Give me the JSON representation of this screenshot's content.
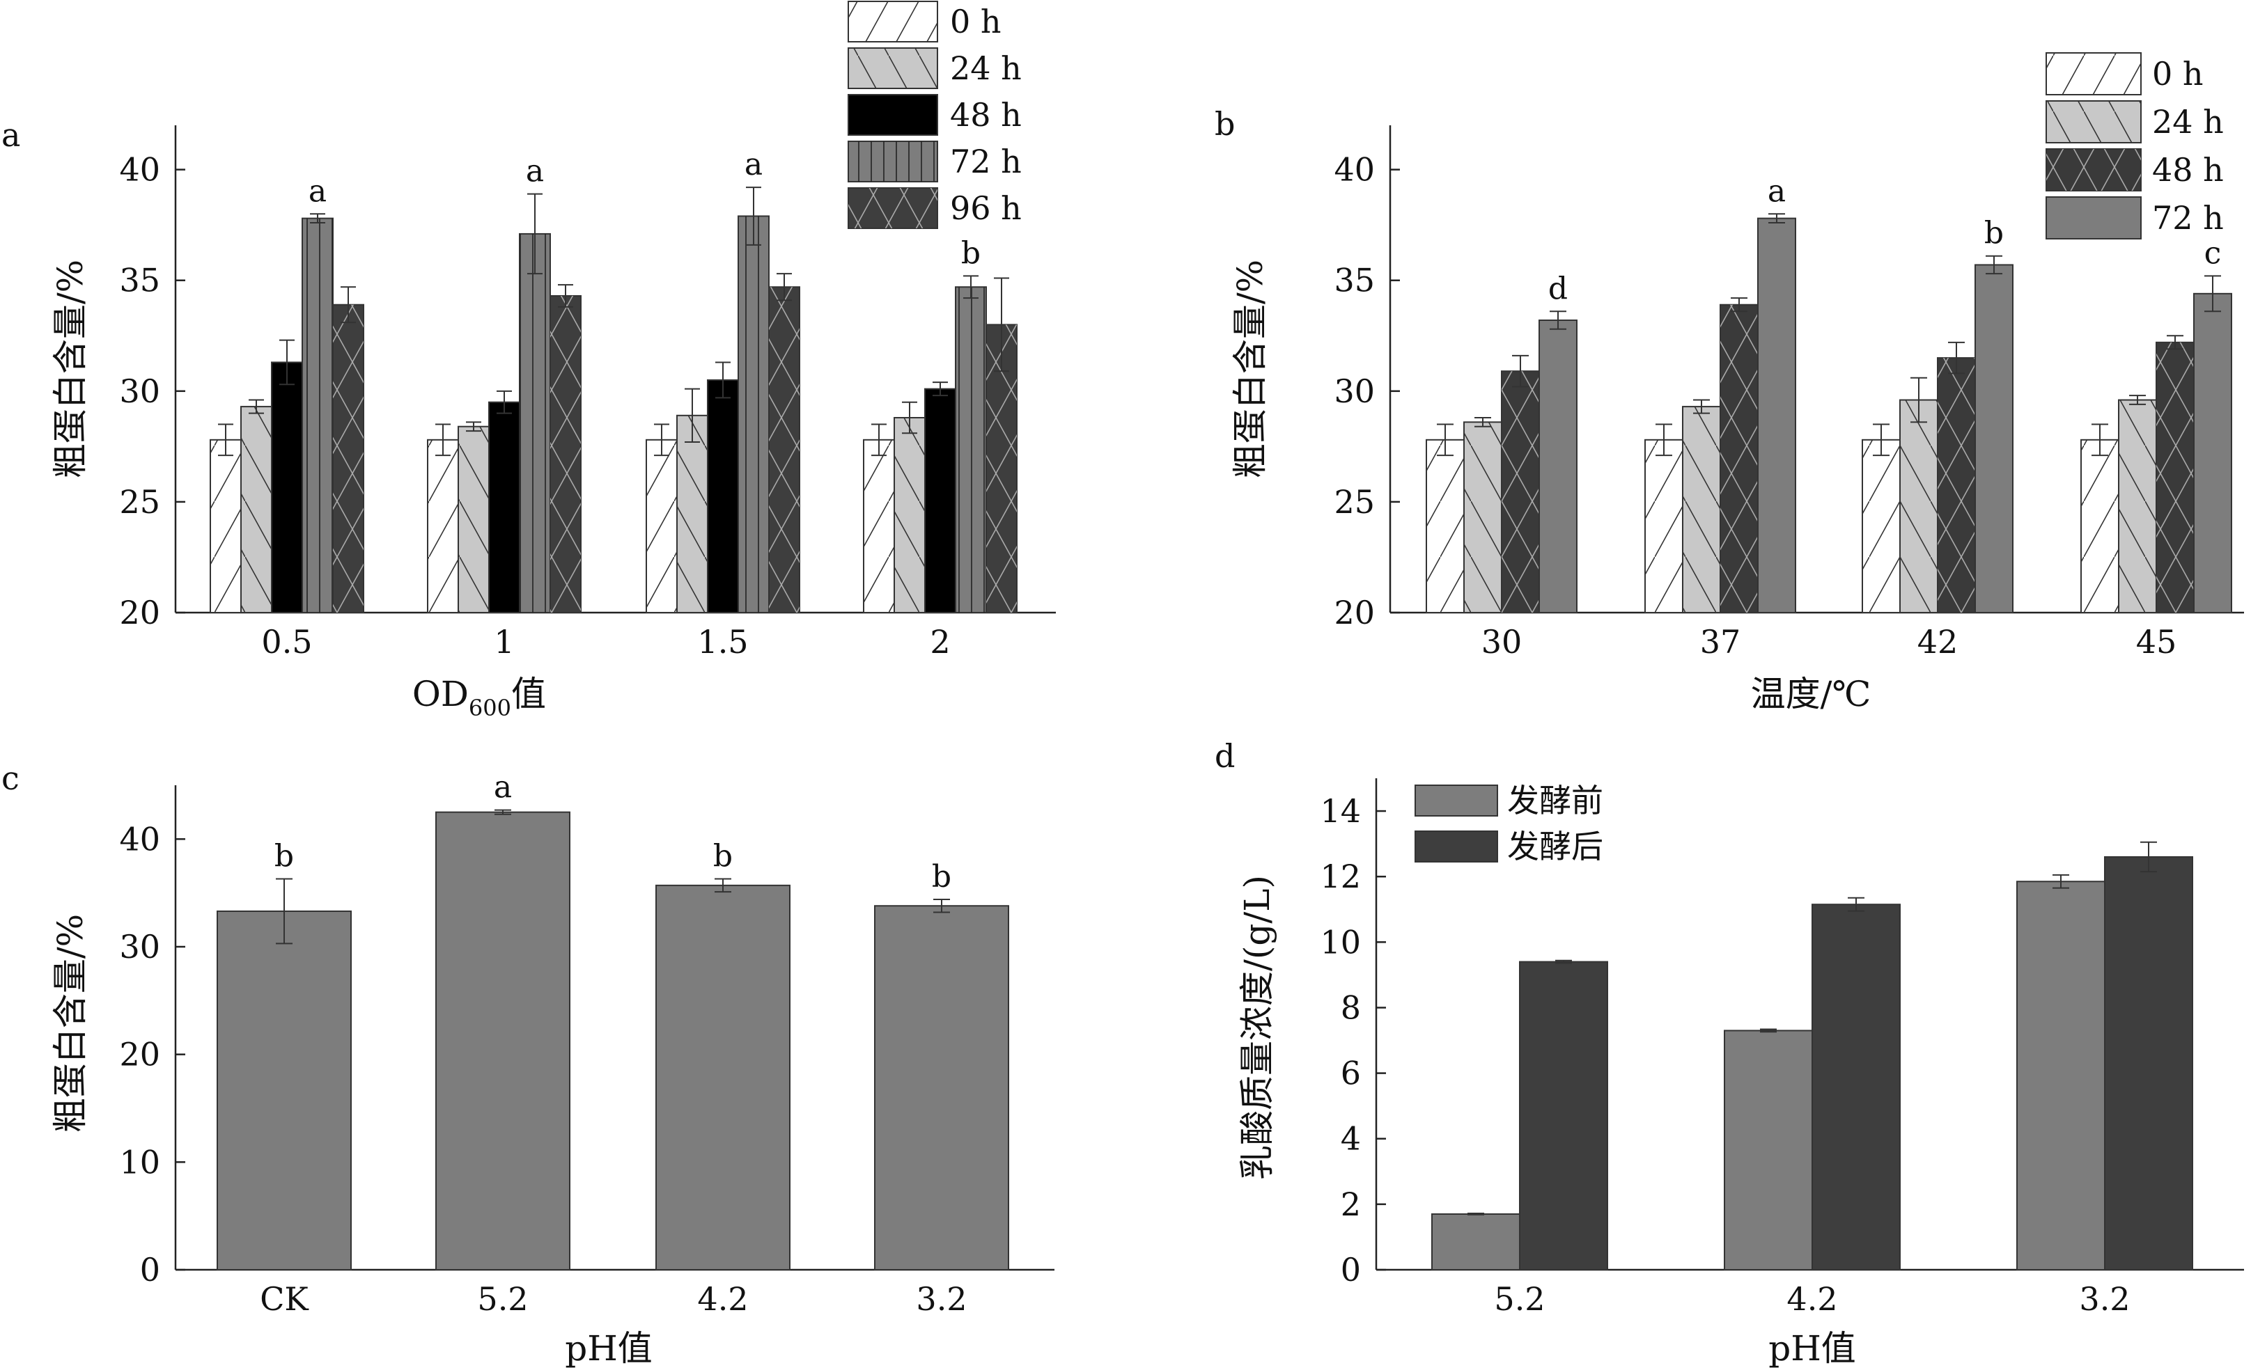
{
  "chart_data": [
    {
      "id": "a",
      "panel": "a",
      "type": "bar",
      "categories": [
        "0.5",
        "1",
        "1.5",
        "2"
      ],
      "xlabel": "OD",
      "xlabel_sub": "600",
      "xlabel_suffix": "值",
      "ylabel": "粗蛋白含量/%",
      "ylim": [
        20,
        42
      ],
      "yticks": [
        20,
        25,
        30,
        35,
        40
      ],
      "series": [
        {
          "name": "0 h",
          "values": [
            27.8,
            27.8,
            27.8,
            27.8
          ],
          "err": [
            0.7,
            0.7,
            0.7,
            0.7
          ],
          "fill": "#ffffff",
          "hatch": "fwd"
        },
        {
          "name": "24 h",
          "values": [
            29.3,
            28.4,
            28.9,
            28.8
          ],
          "err": [
            0.3,
            0.2,
            1.2,
            0.7
          ],
          "fill": "#c8c8c8",
          "hatch": "back"
        },
        {
          "name": "48 h",
          "values": [
            31.3,
            29.5,
            30.5,
            30.1
          ],
          "err": [
            1.0,
            0.5,
            0.8,
            0.3
          ],
          "fill": "#000000",
          "hatch": "none"
        },
        {
          "name": "72 h",
          "values": [
            37.8,
            37.1,
            37.9,
            34.7
          ],
          "err": [
            0.2,
            1.8,
            1.3,
            0.5
          ],
          "fill": "#7d7d7d",
          "hatch": "vert"
        },
        {
          "name": "96 h",
          "values": [
            33.9,
            34.3,
            34.7,
            33.0
          ],
          "err": [
            0.8,
            0.5,
            0.6,
            2.1
          ],
          "fill": "#3e3e3e",
          "hatch": "cross"
        }
      ],
      "annotations": [
        {
          "category": 0,
          "series": 3,
          "label": "a"
        },
        {
          "category": 1,
          "series": 3,
          "label": "a"
        },
        {
          "category": 2,
          "series": 3,
          "label": "a"
        },
        {
          "category": 3,
          "series": 3,
          "label": "b"
        }
      ],
      "legend": "top-right"
    },
    {
      "id": "b",
      "panel": "b",
      "type": "bar",
      "categories": [
        "30",
        "37",
        "42",
        "45"
      ],
      "xlabel": "温度/℃",
      "ylabel": "粗蛋白含量/%",
      "ylim": [
        20,
        42
      ],
      "yticks": [
        20,
        25,
        30,
        35,
        40
      ],
      "series": [
        {
          "name": "0 h",
          "values": [
            27.8,
            27.8,
            27.8,
            27.8
          ],
          "err": [
            0.7,
            0.7,
            0.7,
            0.7
          ],
          "fill": "#ffffff",
          "hatch": "fwd"
        },
        {
          "name": "24 h",
          "values": [
            28.6,
            29.3,
            29.6,
            29.6
          ],
          "err": [
            0.2,
            0.3,
            1.0,
            0.2
          ],
          "fill": "#c8c8c8",
          "hatch": "back"
        },
        {
          "name": "48 h",
          "values": [
            30.9,
            33.9,
            31.5,
            32.2
          ],
          "err": [
            0.7,
            0.3,
            0.7,
            0.3
          ],
          "fill": "#3a3a3a",
          "hatch": "cross"
        },
        {
          "name": "72 h",
          "values": [
            33.2,
            37.8,
            35.7,
            34.4
          ],
          "err": [
            0.4,
            0.2,
            0.4,
            0.8
          ],
          "fill": "#7d7d7d",
          "hatch": "none"
        }
      ],
      "annotations": [
        {
          "category": 0,
          "series": 3,
          "label": "d"
        },
        {
          "category": 1,
          "series": 3,
          "label": "a"
        },
        {
          "category": 2,
          "series": 3,
          "label": "b"
        },
        {
          "category": 3,
          "series": 3,
          "label": "c"
        }
      ],
      "legend": "top-right"
    },
    {
      "id": "c",
      "panel": "c",
      "type": "bar",
      "categories": [
        "CK",
        "5.2",
        "4.2",
        "3.2"
      ],
      "xlabel": "pH值",
      "ylabel": "粗蛋白含量/%",
      "ylim": [
        0,
        45
      ],
      "yticks": [
        0,
        10,
        20,
        30,
        40
      ],
      "series": [
        {
          "values": [
            33.3,
            42.5,
            35.7,
            33.8
          ],
          "err": [
            3.0,
            0.2,
            0.6,
            0.6
          ],
          "fill": "#7d7d7d",
          "hatch": "none"
        }
      ],
      "annotations": [
        {
          "category": 0,
          "series": 0,
          "label": "b"
        },
        {
          "category": 1,
          "series": 0,
          "label": "a"
        },
        {
          "category": 2,
          "series": 0,
          "label": "b"
        },
        {
          "category": 3,
          "series": 0,
          "label": "b"
        }
      ]
    },
    {
      "id": "d",
      "panel": "d",
      "type": "bar",
      "categories": [
        "5.2",
        "4.2",
        "3.2"
      ],
      "xlabel": "pH值",
      "ylabel": "乳酸质量浓度/(g/L)",
      "ylim": [
        0,
        15
      ],
      "yticks": [
        0,
        2,
        4,
        6,
        8,
        10,
        12,
        14
      ],
      "series": [
        {
          "name": "发酵前",
          "values": [
            1.7,
            7.3,
            11.85
          ],
          "err": [
            0.02,
            0.04,
            0.2
          ],
          "fill": "#7d7d7d",
          "hatch": "none"
        },
        {
          "name": "发酵后",
          "values": [
            9.4,
            11.15,
            12.6
          ],
          "err": [
            0.04,
            0.2,
            0.45
          ],
          "fill": "#3e3e3e",
          "hatch": "none"
        }
      ],
      "legend": "top-left"
    }
  ]
}
